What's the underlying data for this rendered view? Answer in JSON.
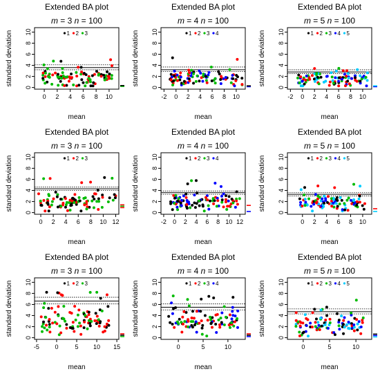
{
  "colors": {
    "1": "#000000",
    "2": "#ff0000",
    "3": "#00bb00",
    "4": "#0000ff",
    "5": "#00ccff"
  },
  "chart_data": [
    {
      "type": "scatter",
      "title": "Extended BA plot",
      "m": 3,
      "n": 100,
      "xlabel": "mean",
      "ylabel": "standard deviation",
      "xlim": [
        -1.5,
        11.5
      ],
      "xticks": [
        0,
        2,
        4,
        6,
        8,
        10
      ],
      "ylim": [
        -0.3,
        10.8
      ],
      "yticks": [
        0,
        2,
        4,
        6,
        8,
        10
      ],
      "hlines": {
        "solid": 3.6,
        "dotted": [
          3.2,
          4.1
        ]
      },
      "legend": [
        "1",
        "2",
        "3"
      ],
      "seed": 11,
      "pointCount": 100,
      "xrange": [
        -0.5,
        10.5
      ],
      "ymean": 1.8,
      "yspread": 1.1,
      "rightTicks": [
        {
          "y": 0.2,
          "c": "3"
        },
        {
          "y": 0.35,
          "c": "1"
        }
      ]
    },
    {
      "type": "scatter",
      "title": "Extended BA plot",
      "m": 4,
      "n": 100,
      "xlabel": "mean",
      "ylabel": "standard deviation",
      "xlim": [
        -2.5,
        11.5
      ],
      "xticks": [
        -2,
        0,
        2,
        4,
        6,
        8,
        10
      ],
      "ylim": [
        -0.3,
        10.8
      ],
      "yticks": [
        0,
        2,
        4,
        6,
        8,
        10
      ],
      "hlines": {
        "solid": 3.2,
        "dotted": [
          2.9,
          3.7
        ]
      },
      "legend": [
        "1",
        "2",
        "3",
        "4"
      ],
      "seed": 23,
      "pointCount": 100,
      "xrange": [
        -1,
        11
      ],
      "ymean": 1.7,
      "yspread": 0.9,
      "rightTicks": [
        {
          "y": 0.15,
          "c": "4"
        },
        {
          "y": 0.3,
          "c": "1"
        }
      ]
    },
    {
      "type": "scatter",
      "title": "Extended BA plot",
      "m": 5,
      "n": 100,
      "xlabel": "mean",
      "ylabel": "standard deviation",
      "xlim": [
        -2.5,
        11.5
      ],
      "xticks": [
        -2,
        0,
        2,
        4,
        6,
        8,
        10
      ],
      "ylim": [
        -0.3,
        10.8
      ],
      "yticks": [
        0,
        2,
        4,
        6,
        8,
        10
      ],
      "hlines": {
        "solid": 2.8,
        "dotted": [
          2.5,
          3.2
        ]
      },
      "legend": [
        "1",
        "2",
        "3",
        "4",
        "5"
      ],
      "seed": 37,
      "pointCount": 100,
      "xrange": [
        -1,
        11
      ],
      "ymean": 1.6,
      "yspread": 0.9,
      "rightTicks": [
        {
          "y": 0.15,
          "c": "4"
        },
        {
          "y": 0.3,
          "c": "5"
        }
      ]
    },
    {
      "type": "scatter",
      "title": "Extended BA plot",
      "m": 3,
      "n": 100,
      "xlabel": "mean",
      "ylabel": "standard deviation",
      "xlim": [
        -1,
        12.5
      ],
      "xticks": [
        0,
        2,
        4,
        6,
        8,
        10,
        12
      ],
      "ylim": [
        -0.3,
        10.8
      ],
      "yticks": [
        0,
        2,
        4,
        6,
        8,
        10
      ],
      "hlines": {
        "solid": 4.3,
        "dotted": [
          4.0,
          4.6
        ]
      },
      "legend": [
        "1",
        "2",
        "3"
      ],
      "seed": 51,
      "pointCount": 100,
      "xrange": [
        -0.5,
        12
      ],
      "ymean": 2.0,
      "yspread": 1.1,
      "rightTicks": [
        {
          "y": 0.9,
          "c": "2"
        },
        {
          "y": 1.15,
          "c": "3"
        },
        {
          "y": 1.4,
          "c": "2"
        }
      ]
    },
    {
      "type": "scatter",
      "title": "Extended BA plot",
      "m": 4,
      "n": 100,
      "xlabel": "mean",
      "ylabel": "standard deviation",
      "xlim": [
        -2.5,
        13
      ],
      "xticks": [
        -2,
        0,
        2,
        4,
        6,
        8,
        10,
        12
      ],
      "ylim": [
        -0.3,
        10.8
      ],
      "yticks": [
        0,
        2,
        4,
        6,
        8,
        10
      ],
      "hlines": {
        "solid": 3.6,
        "dotted": [
          3.3,
          3.9
        ]
      },
      "legend": [
        "1",
        "2",
        "3",
        "4"
      ],
      "seed": 67,
      "pointCount": 100,
      "xrange": [
        -1,
        12
      ],
      "ymean": 2.0,
      "yspread": 0.9,
      "rightTicks": [
        {
          "y": 0.2,
          "c": "4"
        },
        {
          "y": 1.3,
          "c": "2"
        }
      ]
    },
    {
      "type": "scatter",
      "title": "Extended BA plot",
      "m": 5,
      "n": 100,
      "xlabel": "mean",
      "ylabel": "standard deviation",
      "xlim": [
        -2.5,
        11.5
      ],
      "xticks": [
        0,
        2,
        4,
        6,
        8,
        10
      ],
      "ylim": [
        -0.3,
        10.8
      ],
      "yticks": [
        0,
        2,
        4,
        6,
        8,
        10
      ],
      "hlines": {
        "solid": 3.3,
        "dotted": [
          3.0,
          3.6
        ]
      },
      "legend": [
        "1",
        "2",
        "3",
        "4",
        "5"
      ],
      "seed": 79,
      "pointCount": 100,
      "xrange": [
        -0.5,
        11
      ],
      "ymean": 1.9,
      "yspread": 0.9,
      "rightTicks": [
        {
          "y": 0.2,
          "c": "5"
        },
        {
          "y": 0.7,
          "c": "2"
        }
      ]
    },
    {
      "type": "scatter",
      "title": "Extended BA plot",
      "m": 3,
      "n": 100,
      "xlabel": "mean",
      "ylabel": "standard deviation",
      "xlim": [
        -5.5,
        15.5
      ],
      "xticks": [
        -5,
        0,
        5,
        10,
        15
      ],
      "ylim": [
        -0.3,
        10.8
      ],
      "yticks": [
        0,
        2,
        4,
        6,
        8,
        10
      ],
      "hlines": {
        "solid": 6.6,
        "dotted": [
          6.1,
          7.3
        ]
      },
      "legend": [
        "1",
        "2",
        "3"
      ],
      "seed": 91,
      "pointCount": 100,
      "xrange": [
        -4,
        13
      ],
      "ymean": 3.2,
      "yspread": 1.8,
      "rightTicks": [
        {
          "y": 0.2,
          "c": "3"
        },
        {
          "y": 0.45,
          "c": "1"
        },
        {
          "y": 0.7,
          "c": "2"
        }
      ]
    },
    {
      "type": "scatter",
      "title": "Extended BA plot",
      "m": 4,
      "n": 100,
      "xlabel": "mean",
      "ylabel": "standard deviation",
      "xlim": [
        -3.5,
        13.5
      ],
      "xticks": [
        0,
        5,
        10
      ],
      "ylim": [
        -0.3,
        10.8
      ],
      "yticks": [
        0,
        2,
        4,
        6,
        8,
        10
      ],
      "hlines": {
        "solid": 5.5,
        "dotted": [
          5.0,
          6.1
        ]
      },
      "legend": [
        "1",
        "2",
        "3",
        "4"
      ],
      "seed": 103,
      "pointCount": 100,
      "xrange": [
        -2,
        12
      ],
      "ymean": 2.8,
      "yspread": 1.5,
      "rightTicks": [
        {
          "y": 0.2,
          "c": "4"
        },
        {
          "y": 0.45,
          "c": "1"
        },
        {
          "y": 0.7,
          "c": "2"
        }
      ]
    },
    {
      "type": "scatter",
      "title": "Extended BA plot",
      "m": 5,
      "n": 100,
      "xlabel": "mean",
      "ylabel": "standard deviation",
      "xlim": [
        -3,
        13
      ],
      "xticks": [
        0,
        5,
        10
      ],
      "ylim": [
        -0.3,
        10.8
      ],
      "yticks": [
        0,
        2,
        4,
        6,
        8,
        10
      ],
      "hlines": {
        "solid": 4.7,
        "dotted": [
          4.3,
          5.2
        ]
      },
      "legend": [
        "1",
        "2",
        "3",
        "4",
        "5"
      ],
      "seed": 117,
      "pointCount": 100,
      "xrange": [
        -1.5,
        11.5
      ],
      "ymean": 2.4,
      "yspread": 1.3,
      "rightTicks": [
        {
          "y": 0.15,
          "c": "5"
        },
        {
          "y": 0.4,
          "c": "4"
        },
        {
          "y": 0.65,
          "c": "1"
        }
      ]
    }
  ]
}
